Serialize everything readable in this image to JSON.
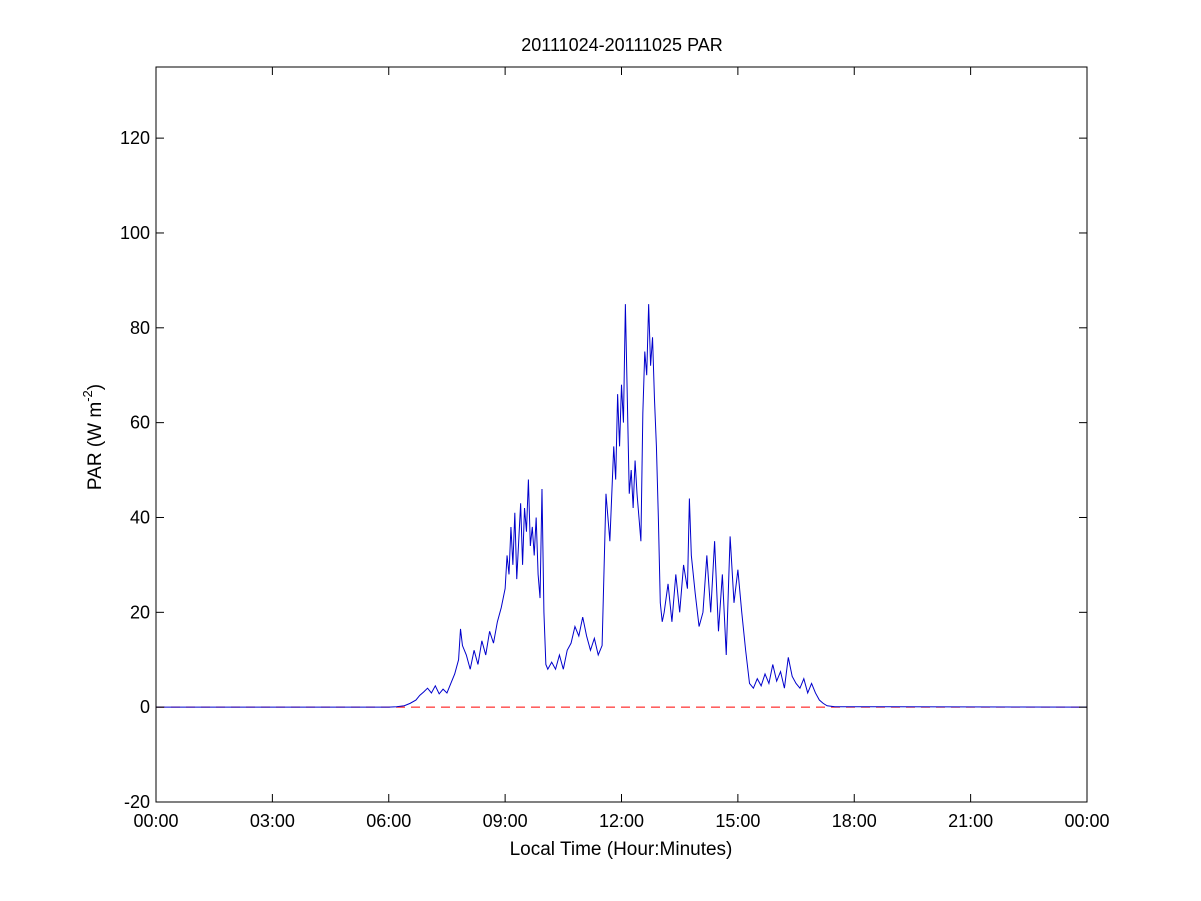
{
  "chart_data": {
    "type": "line",
    "title": "20111024-20111025 PAR",
    "xlabel": "Local Time (Hour:Minutes)",
    "ylabel": "PAR (W m",
    "ylabel_superscript": "-2",
    "ylabel_close": ")",
    "xlim": [
      0,
      24
    ],
    "ylim": [
      -20,
      135
    ],
    "x_ticks": [
      0,
      3,
      6,
      9,
      12,
      15,
      18,
      21,
      24
    ],
    "x_tick_labels": [
      "00:00",
      "03:00",
      "06:00",
      "09:00",
      "12:00",
      "15:00",
      "18:00",
      "21:00",
      "00:00"
    ],
    "y_ticks": [
      -20,
      0,
      20,
      40,
      60,
      80,
      100,
      120
    ],
    "y_tick_labels": [
      "-20",
      "0",
      "20",
      "40",
      "60",
      "80",
      "100",
      "120"
    ],
    "grid": false,
    "legend": "none",
    "series": [
      {
        "color": "#0000cc",
        "style": "solid",
        "x": [
          0,
          6.0,
          6.2,
          6.4,
          6.55,
          6.7,
          6.8,
          6.9,
          7.0,
          7.1,
          7.2,
          7.3,
          7.4,
          7.5,
          7.6,
          7.7,
          7.8,
          7.85,
          7.9,
          8.0,
          8.1,
          8.2,
          8.3,
          8.4,
          8.5,
          8.6,
          8.7,
          8.8,
          8.9,
          9.0,
          9.05,
          9.1,
          9.15,
          9.2,
          9.25,
          9.3,
          9.35,
          9.4,
          9.45,
          9.5,
          9.55,
          9.6,
          9.65,
          9.7,
          9.75,
          9.8,
          9.85,
          9.9,
          9.95,
          10.0,
          10.05,
          10.1,
          10.2,
          10.3,
          10.4,
          10.5,
          10.6,
          10.7,
          10.8,
          10.9,
          11.0,
          11.1,
          11.2,
          11.3,
          11.4,
          11.5,
          11.6,
          11.7,
          11.8,
          11.85,
          11.9,
          11.95,
          12.0,
          12.05,
          12.1,
          12.15,
          12.2,
          12.25,
          12.3,
          12.35,
          12.4,
          12.45,
          12.5,
          12.55,
          12.6,
          12.65,
          12.7,
          12.75,
          12.8,
          12.85,
          12.9,
          12.95,
          13.0,
          13.05,
          13.1,
          13.2,
          13.3,
          13.4,
          13.5,
          13.6,
          13.7,
          13.75,
          13.8,
          13.9,
          14.0,
          14.1,
          14.2,
          14.3,
          14.4,
          14.5,
          14.6,
          14.7,
          14.8,
          14.9,
          15.0,
          15.1,
          15.2,
          15.3,
          15.4,
          15.5,
          15.6,
          15.7,
          15.8,
          15.9,
          16.0,
          16.1,
          16.2,
          16.3,
          16.4,
          16.5,
          16.6,
          16.7,
          16.8,
          16.9,
          17.0,
          17.1,
          17.2,
          17.3,
          17.5,
          24
        ],
        "y": [
          0,
          0,
          0.1,
          0.3,
          0.8,
          1.5,
          2.5,
          3.2,
          4.0,
          3.0,
          4.5,
          2.8,
          3.8,
          3.0,
          5.0,
          7.0,
          10.0,
          16.5,
          13.0,
          11.0,
          8.0,
          12.0,
          9.0,
          14.0,
          11.0,
          16.0,
          13.5,
          18.0,
          21.0,
          25.0,
          32.0,
          28.0,
          38.0,
          30.0,
          41.0,
          27.0,
          35.0,
          43.0,
          30.0,
          42.0,
          37.0,
          48.0,
          34.0,
          38.0,
          32.0,
          40.0,
          28.0,
          23.0,
          46.0,
          20.0,
          9.0,
          8.0,
          9.5,
          8.0,
          11.0,
          8.0,
          12.0,
          13.5,
          17.0,
          15.0,
          19.0,
          15.0,
          12.0,
          14.5,
          11.0,
          13.0,
          45.0,
          35.0,
          55.0,
          48.0,
          66.0,
          55.0,
          68.0,
          60.0,
          85.0,
          65.0,
          45.0,
          50.0,
          42.0,
          52.0,
          45.0,
          40.0,
          35.0,
          62.0,
          75.0,
          70.0,
          85.0,
          72.0,
          78.0,
          65.0,
          55.0,
          40.0,
          22.0,
          18.0,
          20.0,
          26.0,
          18.0,
          28.0,
          20.0,
          30.0,
          25.0,
          44.0,
          32.0,
          24.0,
          17.0,
          20.0,
          32.0,
          20.0,
          35.0,
          16.0,
          28.0,
          11.0,
          36.0,
          22.0,
          29.0,
          20.0,
          12.0,
          5.0,
          4.0,
          6.0,
          4.5,
          7.0,
          5.0,
          9.0,
          5.5,
          7.5,
          4.0,
          10.5,
          6.5,
          5.0,
          4.0,
          6.0,
          3.0,
          5.0,
          3.0,
          1.5,
          0.8,
          0.3,
          0.1,
          0
        ]
      },
      {
        "color": "#ff0000",
        "style": "dashed",
        "x": [
          0,
          24
        ],
        "y": [
          0,
          0
        ]
      }
    ]
  }
}
